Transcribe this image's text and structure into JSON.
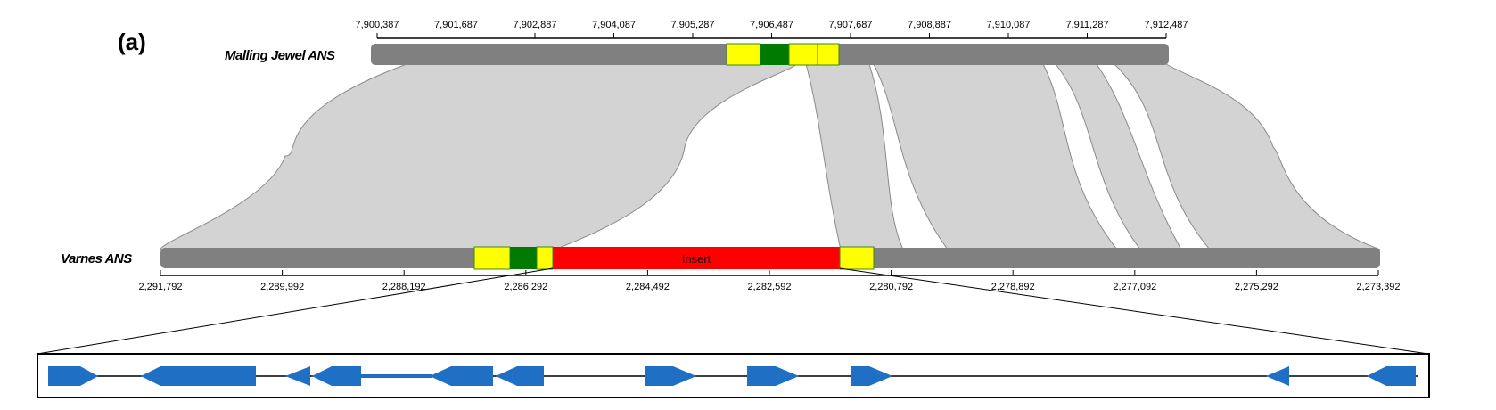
{
  "panel_label": "(a)",
  "tracks": {
    "top": {
      "label": "Malling Jewel ANS",
      "ticks": [
        "7,900,387",
        "7,901,687",
        "7,902,887",
        "7,904,087",
        "7,905,287",
        "7,906,487",
        "7,907,687",
        "7,908,887",
        "7,910,087",
        "7,911,287",
        "7,912,487"
      ]
    },
    "bottom": {
      "label": "Varnes ANS",
      "ticks": [
        "2,291,792",
        "2,289,992",
        "2,288,192",
        "2,286,292",
        "2,284,492",
        "2,282,592",
        "2,280,792",
        "2,278,892",
        "2,277,092",
        "2,275,292",
        "2,273,392"
      ]
    }
  },
  "insert_label": "Insert",
  "colors": {
    "chromosome": "#808080",
    "synteny": "#d3d3d3",
    "synteny_edge": "#8a8a8a",
    "flank": "#ffff00",
    "core": "#007a00",
    "insert": "#ff0000",
    "gene": "#1f6fc5"
  }
}
